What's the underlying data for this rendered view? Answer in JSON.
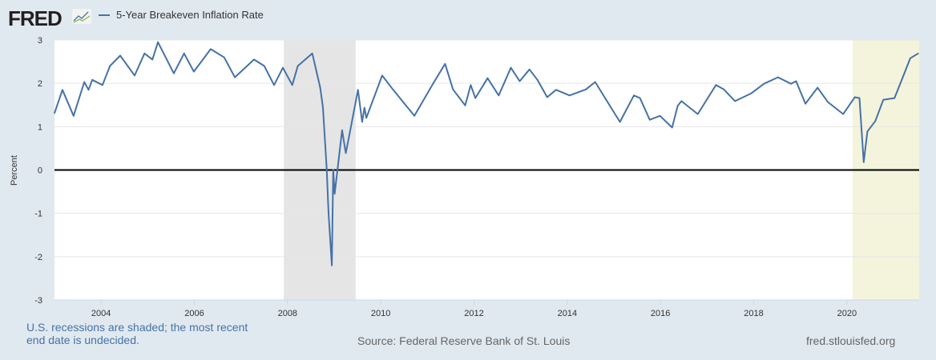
{
  "header": {
    "logo_text": "FRED",
    "legend_label": "5-Year Breakeven Inflation Rate"
  },
  "footer": {
    "recession_note": "U.S. recessions are shaded; the most recent end date is undecided.",
    "source": "Source: Federal Reserve Bank of St. Louis",
    "site": "fred.stlouisfed.org"
  },
  "chart_data": {
    "type": "line",
    "title": "",
    "xlabel": "",
    "ylabel": "Percent",
    "xlim": [
      2003.0,
      2021.55
    ],
    "ylim": [
      -3,
      3
    ],
    "grid": true,
    "legend": "top-left",
    "x_ticks": [
      "2004",
      "2006",
      "2008",
      "2010",
      "2012",
      "2014",
      "2016",
      "2018",
      "2020"
    ],
    "y_ticks": [
      "3",
      "2",
      "1",
      "0",
      "-1",
      "-2",
      "-3"
    ],
    "colors": {
      "series": "#4572a7",
      "recession": "#e5e5e5",
      "recession_current": "#f4f4dc",
      "zero_line": "#000000"
    },
    "recessions": [
      [
        2007.92,
        2009.46
      ],
      [
        2020.12,
        2021.55
      ]
    ],
    "series": [
      {
        "name": "5-Year Breakeven Inflation Rate",
        "points": [
          [
            2003.0,
            1.31
          ],
          [
            2003.17,
            1.85
          ],
          [
            2003.41,
            1.25
          ],
          [
            2003.64,
            2.03
          ],
          [
            2003.73,
            1.85
          ],
          [
            2003.81,
            2.08
          ],
          [
            2004.03,
            1.96
          ],
          [
            2004.19,
            2.4
          ],
          [
            2004.41,
            2.64
          ],
          [
            2004.72,
            2.18
          ],
          [
            2004.93,
            2.69
          ],
          [
            2005.1,
            2.55
          ],
          [
            2005.22,
            2.95
          ],
          [
            2005.56,
            2.23
          ],
          [
            2005.78,
            2.69
          ],
          [
            2005.99,
            2.27
          ],
          [
            2006.35,
            2.79
          ],
          [
            2006.64,
            2.6
          ],
          [
            2006.87,
            2.14
          ],
          [
            2007.28,
            2.55
          ],
          [
            2007.5,
            2.4
          ],
          [
            2007.71,
            1.96
          ],
          [
            2007.9,
            2.36
          ],
          [
            2008.1,
            1.96
          ],
          [
            2008.22,
            2.4
          ],
          [
            2008.53,
            2.69
          ],
          [
            2008.7,
            1.9
          ],
          [
            2008.76,
            1.44
          ],
          [
            2008.84,
            0.02
          ],
          [
            2008.88,
            -1.0
          ],
          [
            2008.95,
            -2.2
          ],
          [
            2008.98,
            0.0
          ],
          [
            2009.01,
            -0.55
          ],
          [
            2009.17,
            0.92
          ],
          [
            2009.25,
            0.39
          ],
          [
            2009.34,
            0.89
          ],
          [
            2009.51,
            1.85
          ],
          [
            2009.6,
            1.11
          ],
          [
            2009.65,
            1.44
          ],
          [
            2009.69,
            1.2
          ],
          [
            2010.03,
            2.18
          ],
          [
            2010.26,
            1.86
          ],
          [
            2010.72,
            1.25
          ],
          [
            2011.12,
            1.99
          ],
          [
            2011.38,
            2.45
          ],
          [
            2011.55,
            1.86
          ],
          [
            2011.81,
            1.49
          ],
          [
            2011.93,
            1.96
          ],
          [
            2012.03,
            1.66
          ],
          [
            2012.29,
            2.12
          ],
          [
            2012.53,
            1.72
          ],
          [
            2012.79,
            2.36
          ],
          [
            2012.98,
            2.05
          ],
          [
            2013.19,
            2.32
          ],
          [
            2013.36,
            2.08
          ],
          [
            2013.57,
            1.68
          ],
          [
            2013.76,
            1.85
          ],
          [
            2014.05,
            1.72
          ],
          [
            2014.4,
            1.86
          ],
          [
            2014.6,
            2.03
          ],
          [
            2014.91,
            1.49
          ],
          [
            2015.13,
            1.11
          ],
          [
            2015.43,
            1.72
          ],
          [
            2015.56,
            1.66
          ],
          [
            2015.77,
            1.16
          ],
          [
            2015.99,
            1.25
          ],
          [
            2016.25,
            0.98
          ],
          [
            2016.37,
            1.48
          ],
          [
            2016.45,
            1.59
          ],
          [
            2016.8,
            1.29
          ],
          [
            2017.19,
            1.96
          ],
          [
            2017.36,
            1.86
          ],
          [
            2017.6,
            1.59
          ],
          [
            2017.95,
            1.77
          ],
          [
            2018.22,
            1.99
          ],
          [
            2018.52,
            2.14
          ],
          [
            2018.8,
            1.99
          ],
          [
            2018.91,
            2.05
          ],
          [
            2019.11,
            1.53
          ],
          [
            2019.37,
            1.9
          ],
          [
            2019.59,
            1.57
          ],
          [
            2019.92,
            1.29
          ],
          [
            2020.17,
            1.68
          ],
          [
            2020.27,
            1.66
          ],
          [
            2020.36,
            0.18
          ],
          [
            2020.44,
            0.89
          ],
          [
            2020.61,
            1.13
          ],
          [
            2020.78,
            1.62
          ],
          [
            2021.02,
            1.66
          ],
          [
            2021.19,
            2.12
          ],
          [
            2021.36,
            2.58
          ],
          [
            2021.53,
            2.69
          ]
        ]
      }
    ]
  }
}
